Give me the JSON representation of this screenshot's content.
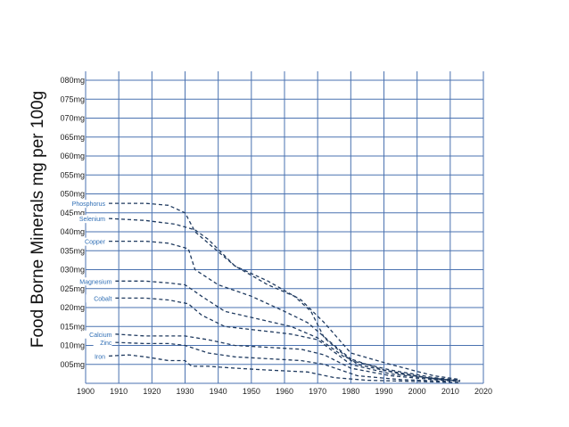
{
  "chart_data": {
    "type": "line",
    "ylabel": "Food Borne Minerals mg per 100g",
    "xlim": [
      1900,
      2020
    ],
    "ylim": [
      0,
      80
    ],
    "x_ticks": [
      "1900",
      "1910",
      "1920",
      "1930",
      "1940",
      "1950",
      "1960",
      "1970",
      "1980",
      "1990",
      "2000",
      "2010",
      "2020"
    ],
    "y_ticks": [
      {
        "value": 5,
        "label": "005mg"
      },
      {
        "value": 10,
        "label": "010mg"
      },
      {
        "value": 15,
        "label": "015mg"
      },
      {
        "value": 20,
        "label": "020mg"
      },
      {
        "value": 25,
        "label": "025mg"
      },
      {
        "value": 30,
        "label": "030mg"
      },
      {
        "value": 35,
        "label": "035mg"
      },
      {
        "value": 40,
        "label": "040mg"
      },
      {
        "value": 45,
        "label": "045mg"
      },
      {
        "value": 50,
        "label": "050mg"
      },
      {
        "value": 55,
        "label": "055mg"
      },
      {
        "value": 60,
        "label": "060mg"
      },
      {
        "value": 65,
        "label": "065mg"
      },
      {
        "value": 70,
        "label": "070mg"
      },
      {
        "value": 75,
        "label": "075mg"
      },
      {
        "value": 80,
        "label": "080mg"
      }
    ],
    "grid": true,
    "legend": "inline labels at the left end of each line",
    "colors": {
      "grid": "#4a72b0",
      "line": "#1f3a5f",
      "label": "#2f6eb5"
    },
    "series": [
      {
        "name": "Phosphorus",
        "x": [
          1907,
          1918,
          1925,
          1930,
          1933,
          1937,
          1945,
          1955,
          1965,
          1972,
          1980,
          1992,
          2005,
          2013
        ],
        "y": [
          47.5,
          47.5,
          47,
          45,
          40,
          37,
          31,
          27,
          22,
          16,
          8,
          5,
          2,
          1
        ]
      },
      {
        "name": "Selenium",
        "x": [
          1907,
          1918,
          1927,
          1933,
          1937,
          1945,
          1955,
          1963,
          1968,
          1972,
          1980,
          1992,
          2005,
          2013
        ],
        "y": [
          43.5,
          43,
          42,
          40.5,
          38,
          31,
          26,
          23,
          19,
          12,
          6,
          3.5,
          1.5,
          0.8
        ]
      },
      {
        "name": "Copper",
        "x": [
          1907,
          1918,
          1925,
          1931,
          1933,
          1940,
          1950,
          1960,
          1967,
          1975,
          1982,
          1995,
          2005,
          2013
        ],
        "y": [
          37.5,
          37.5,
          37,
          35.5,
          30,
          26,
          23,
          19,
          16,
          10,
          5,
          2.5,
          1.2,
          0.6
        ]
      },
      {
        "name": "Magnesium",
        "x": [
          1909,
          1918,
          1925,
          1930,
          1935,
          1942,
          1952,
          1962,
          1970,
          1978,
          1990,
          2003,
          2011
        ],
        "y": [
          27,
          27,
          26.5,
          26,
          23,
          19,
          17,
          15,
          12,
          7,
          3.5,
          1.5,
          0.8
        ]
      },
      {
        "name": "Cobalt",
        "x": [
          1909,
          1918,
          1925,
          1931,
          1935,
          1942,
          1952,
          1962,
          1970,
          1980,
          1992,
          2005,
          2013
        ],
        "y": [
          22.5,
          22.5,
          22,
          21,
          18,
          15,
          14,
          13,
          11.5,
          5,
          2.5,
          1.2,
          0.8
        ]
      },
      {
        "name": "Calcium",
        "x": [
          1909,
          1918,
          1925,
          1930,
          1937,
          1945,
          1955,
          1965,
          1972,
          1980,
          1992,
          2005,
          2013
        ],
        "y": [
          13,
          12.5,
          12.5,
          12.5,
          11.5,
          10,
          9.5,
          9,
          7.5,
          4,
          2,
          1,
          0.5
        ]
      },
      {
        "name": "Zinc",
        "x": [
          1909,
          1918,
          1925,
          1930,
          1937,
          1945,
          1955,
          1965,
          1972,
          1982,
          1995,
          2010
        ],
        "y": [
          10.8,
          10.5,
          10.5,
          10,
          8,
          7,
          6.5,
          6,
          5,
          2,
          1,
          0.5
        ]
      },
      {
        "name": "Iron",
        "x": [
          1907,
          1913,
          1918,
          1925,
          1930,
          1932,
          1937,
          1945,
          1955,
          1967,
          1975,
          1985,
          2000,
          2013
        ],
        "y": [
          7.2,
          7.5,
          7,
          6,
          6,
          4.5,
          4.5,
          4,
          3.5,
          3,
          1.5,
          0.8,
          0.5,
          0.2
        ]
      }
    ]
  }
}
